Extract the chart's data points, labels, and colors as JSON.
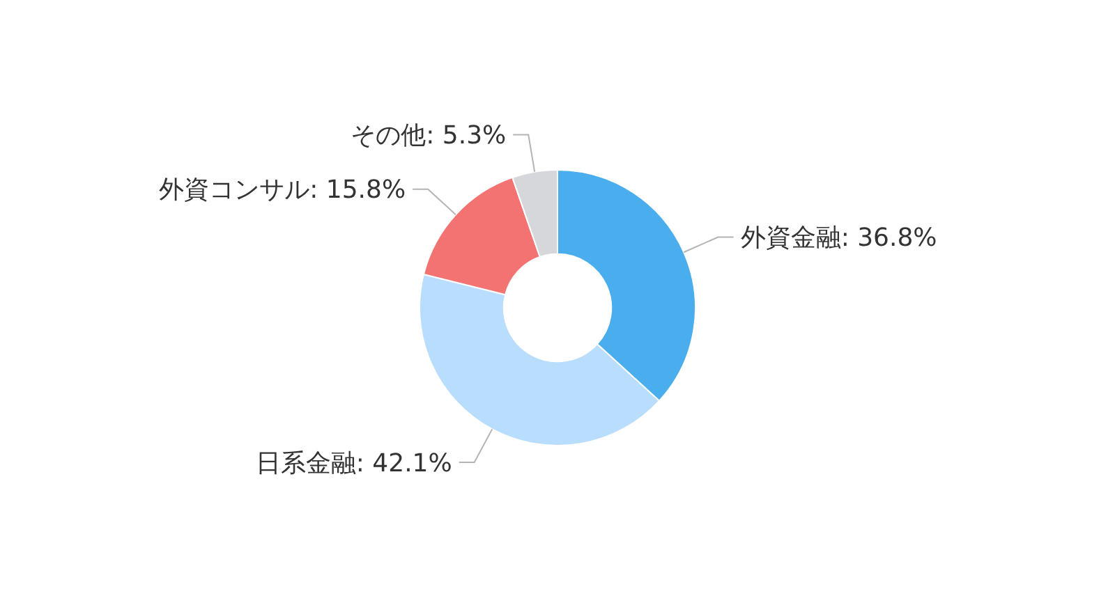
{
  "chart_data": {
    "type": "donut",
    "categories": [
      "外資金融",
      "日系金融",
      "外資コンサル",
      "その他"
    ],
    "values": [
      36.8,
      42.1,
      15.8,
      5.3
    ],
    "colors": [
      "#4aadee",
      "#b8ddfd",
      "#f37373",
      "#d6d7db"
    ],
    "value_labels": [
      "36.8%",
      "42.1%",
      "15.8%",
      "5.3%"
    ]
  }
}
